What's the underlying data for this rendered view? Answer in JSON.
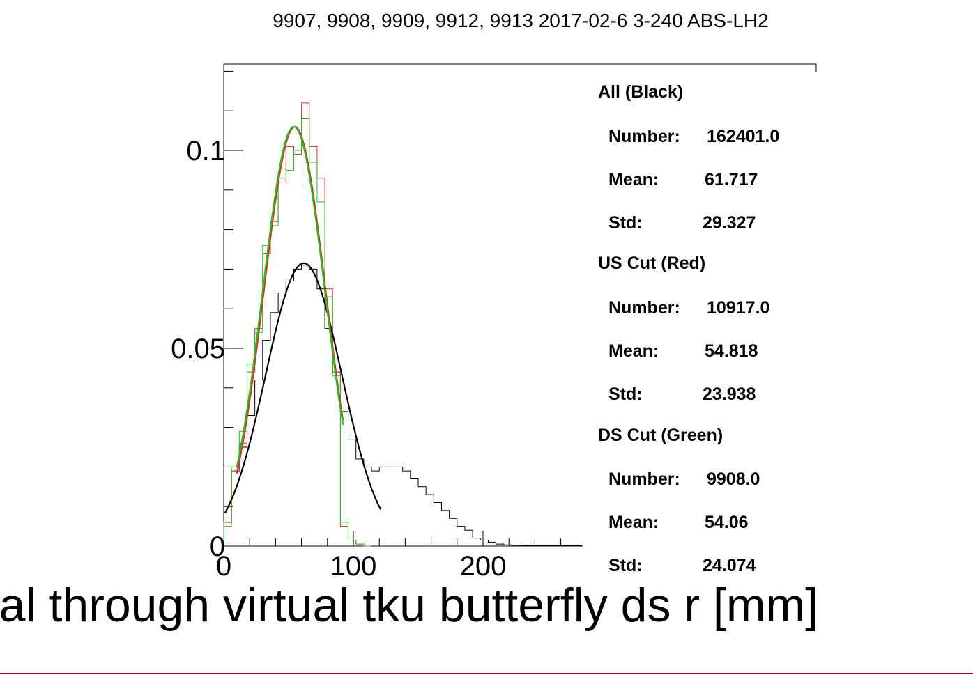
{
  "chart_data": {
    "type": "histogram",
    "title": "9907, 9908, 9909, 9912, 9913 2017-02-6 3-240 ABS-LH2",
    "xlabel": "al through virtual tku butterfly ds r [mm]",
    "ylabel": "",
    "xlim": [
      0,
      280
    ],
    "ylim": [
      0,
      0.12
    ],
    "xticks": [
      "0",
      "100",
      "200"
    ],
    "yticks": [
      "0",
      "0.05",
      "0.1"
    ],
    "bin_edges_start": 0,
    "bin_width": 6,
    "series": [
      {
        "name": "All (Black)",
        "color": "#000000",
        "values": [
          0.006,
          0.019,
          0.025,
          0.033,
          0.042,
          0.052,
          0.059,
          0.064,
          0.067,
          0.07,
          0.071,
          0.07,
          0.065,
          0.055,
          0.044,
          0.034,
          0.027,
          0.022,
          0.02,
          0.019,
          0.02,
          0.02,
          0.02,
          0.019,
          0.017,
          0.015,
          0.013,
          0.011,
          0.009,
          0.007,
          0.005,
          0.004,
          0.002,
          0.0015,
          0.001,
          0.0005,
          0.0003,
          0.0002,
          0.0001,
          0.0001,
          0.0001,
          0.0001,
          0.0001,
          0.0001,
          0.0001,
          0.0001,
          0.0
        ],
        "fit": {
          "mean": 61.717,
          "sigma": 29.327,
          "peak": 0.0715,
          "range": [
            1,
            121
          ]
        }
      },
      {
        "name": "US Cut (Red)",
        "color": "#e8262b",
        "values": [
          0.006,
          0.019,
          0.026,
          0.044,
          0.055,
          0.074,
          0.082,
          0.092,
          0.101,
          0.099,
          0.112,
          0.101,
          0.093,
          0.065,
          0.044,
          0.005,
          0.0015,
          0.0005,
          0.0
        ],
        "fit": {
          "mean": 54.818,
          "sigma": 23.938,
          "peak": 0.106,
          "range": [
            10,
            92
          ]
        }
      },
      {
        "name": "DS Cut (Green)",
        "color": "#22c01f",
        "values": [
          0.005,
          0.02,
          0.029,
          0.046,
          0.054,
          0.076,
          0.081,
          0.093,
          0.095,
          0.1,
          0.108,
          0.097,
          0.087,
          0.063,
          0.043,
          0.006,
          0.0015,
          0.0005,
          0.0
        ],
        "fit": {
          "mean": 54.06,
          "sigma": 24.074,
          "peak": 0.106,
          "range": [
            10,
            92
          ]
        }
      }
    ]
  },
  "stats": {
    "all": {
      "header": "All (Black)",
      "number_label": "Number:",
      "number": "162401.0",
      "mean_label": "Mean:",
      "mean": "61.717",
      "std_label": "Std:",
      "std": "29.327"
    },
    "us": {
      "header": "US Cut (Red)",
      "number_label": "Number:",
      "number": "10917.0",
      "mean_label": "Mean:",
      "mean": "54.818",
      "std_label": "Std:",
      "std": "23.938"
    },
    "ds": {
      "header": "DS Cut (Green)",
      "number_label": "Number:",
      "number": "9908.0",
      "mean_label": "Mean:",
      "mean": "54.06",
      "std_label": "Std:",
      "std": "24.074"
    }
  }
}
